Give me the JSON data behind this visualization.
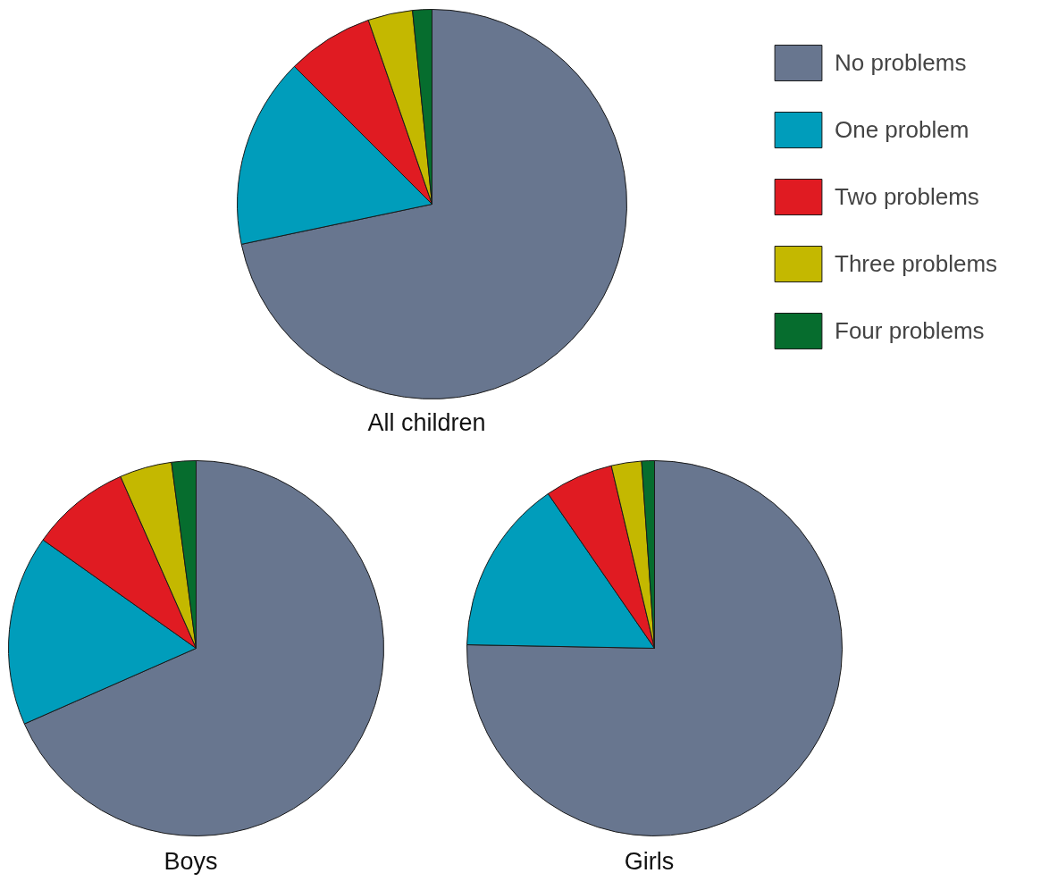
{
  "chart_data": [
    {
      "type": "pie",
      "title": "All children",
      "categories": [
        "No problems",
        "One problem",
        "Two problems",
        "Three problems",
        "Four problems"
      ],
      "values": [
        71.7,
        15.8,
        7.2,
        3.7,
        1.6
      ],
      "colors": [
        "#68768f",
        "#009dbb",
        "#e01b22",
        "#c4b800",
        "#066d2e"
      ],
      "legend": "right"
    },
    {
      "type": "pie",
      "title": "Boys",
      "categories": [
        null,
        null,
        null,
        null,
        null
      ],
      "values": [
        68.4,
        16.4,
        8.6,
        4.5,
        2.1
      ],
      "colors": [
        "#68768f",
        "#009dbb",
        "#e01b22",
        "#c4b800",
        "#066d2e"
      ]
    },
    {
      "type": "pie",
      "title": "Girls",
      "categories": [
        null,
        null,
        null,
        null,
        null
      ],
      "values": [
        75.3,
        15.1,
        5.9,
        2.6,
        1.1
      ],
      "colors": [
        "#68768f",
        "#009dbb",
        "#e01b22",
        "#c4b800",
        "#066d2e"
      ]
    }
  ]
}
